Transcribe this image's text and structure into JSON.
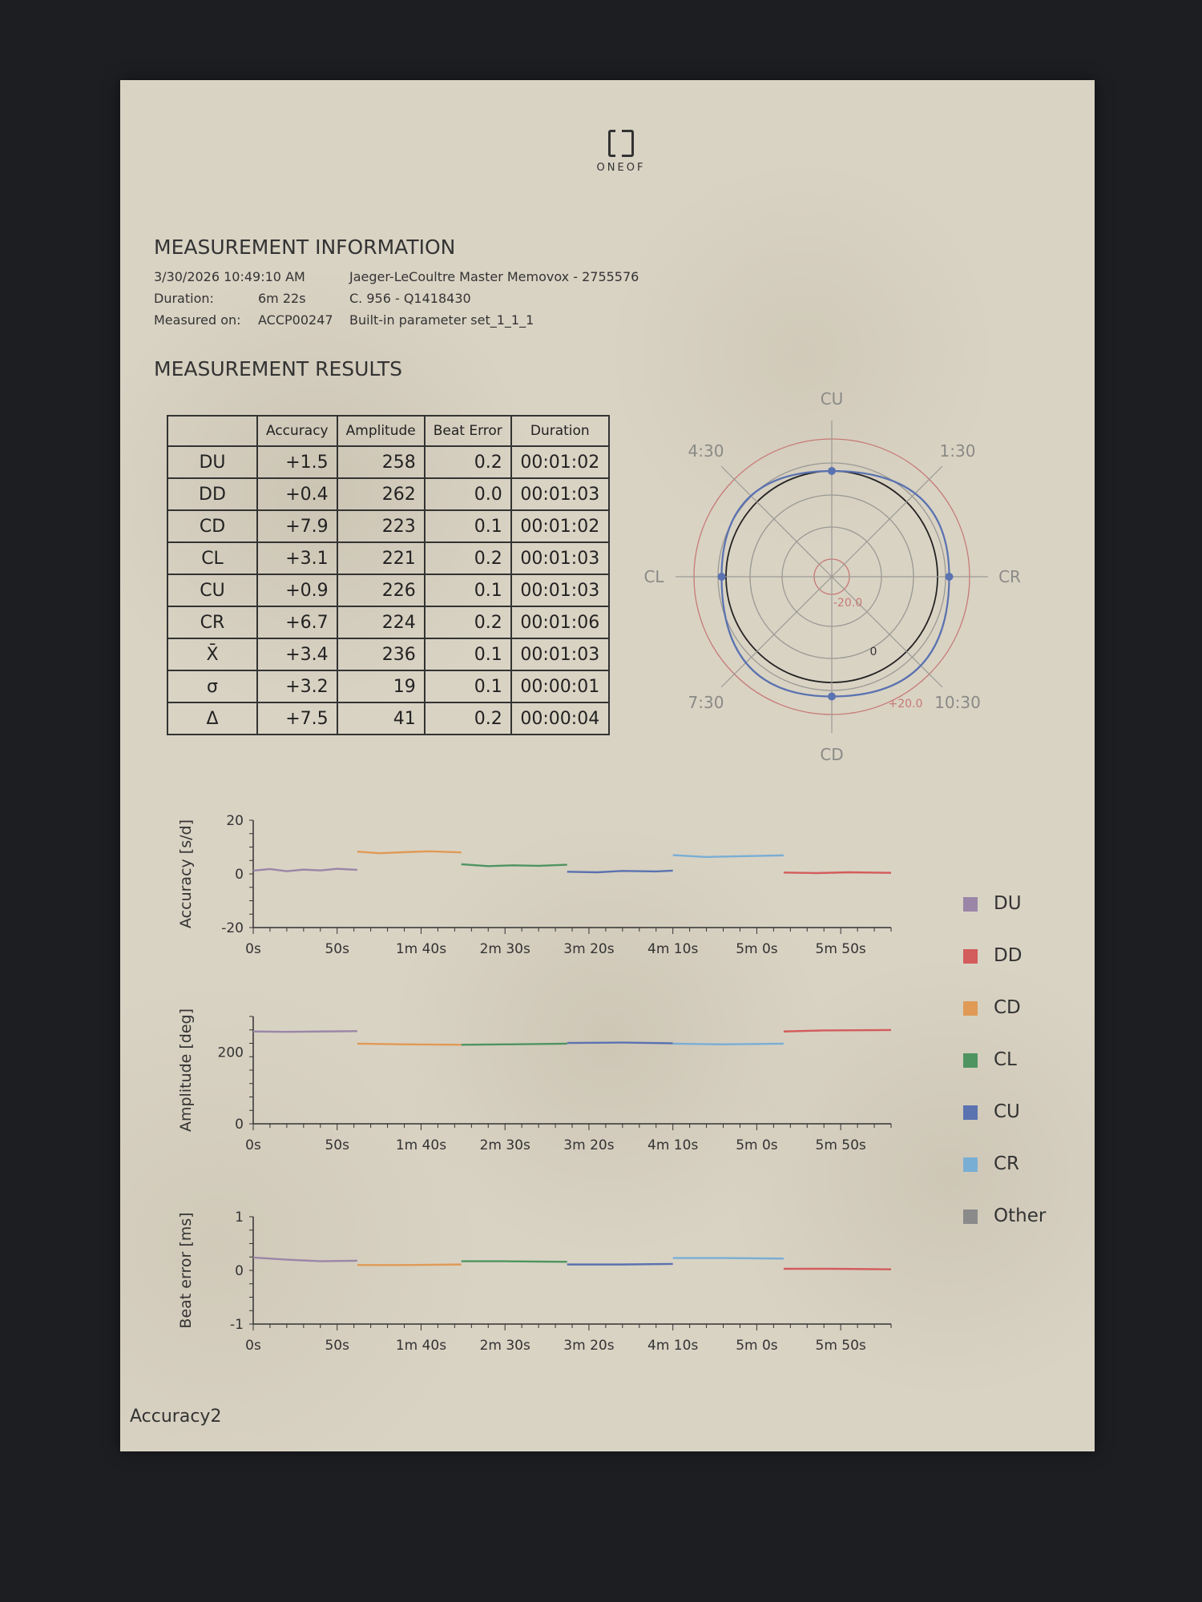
{
  "brand": {
    "logo_text": "ONEOF"
  },
  "measurement_information": {
    "title": "MEASUREMENT INFORMATION",
    "datetime": "3/30/2026 10:49:10 AM",
    "watch": "Jaeger-LeCoultre Master Memovox - 2755576",
    "duration_label": "Duration:",
    "duration_value": "6m 22s",
    "caliber": "C. 956 - Q1418430",
    "measured_on_label": "Measured on:",
    "device": "ACCP00247",
    "parameter_set": "Built-in parameter set_1_1_1"
  },
  "measurement_results": {
    "title": "MEASUREMENT RESULTS",
    "columns": [
      "",
      "Accuracy",
      "Amplitude",
      "Beat Error",
      "Duration"
    ],
    "rows": [
      [
        "DU",
        "+1.5",
        "258",
        "0.2",
        "00:01:02"
      ],
      [
        "DD",
        "+0.4",
        "262",
        "0.0",
        "00:01:03"
      ],
      [
        "CD",
        "+7.9",
        "223",
        "0.1",
        "00:01:02"
      ],
      [
        "CL",
        "+3.1",
        "221",
        "0.2",
        "00:01:03"
      ],
      [
        "CU",
        "+0.9",
        "226",
        "0.1",
        "00:01:03"
      ],
      [
        "CR",
        "+6.7",
        "224",
        "0.2",
        "00:01:06"
      ],
      [
        "X̄",
        "+3.4",
        "236",
        "0.1",
        "00:01:03"
      ],
      [
        "σ",
        "+3.2",
        "19",
        "0.1",
        "00:00:01"
      ],
      [
        "Δ",
        "+7.5",
        "41",
        "0.2",
        "00:00:04"
      ]
    ]
  },
  "legend": [
    {
      "name": "DU",
      "color": "#9b86a8"
    },
    {
      "name": "DD",
      "color": "#d35c5c"
    },
    {
      "name": "CD",
      "color": "#e09a55"
    },
    {
      "name": "CL",
      "color": "#4e9460"
    },
    {
      "name": "CU",
      "color": "#5a72b0"
    },
    {
      "name": "CR",
      "color": "#79aed4"
    },
    {
      "name": "Other",
      "color": "#8a8a8a"
    }
  ],
  "footer": {
    "text": "Accuracy2"
  },
  "chart_data": [
    {
      "type": "polar",
      "axis_labels": [
        "CU",
        "1:30",
        "CR",
        "10:30",
        "CD",
        "7:30",
        "CL",
        "4:30"
      ],
      "ring_labels": [
        "-20.0",
        "0",
        "+20.0"
      ],
      "rlim": [
        -20,
        20
      ],
      "points": [
        {
          "position": "CU",
          "value": 0.9
        },
        {
          "position": "CR",
          "value": 6.7
        },
        {
          "position": "CD",
          "value": 7.9
        },
        {
          "position": "CL",
          "value": 3.1
        }
      ]
    },
    {
      "type": "line",
      "ylabel": "Accuracy [s/d]",
      "ylim": [
        -20,
        20
      ],
      "yticks": [
        "20",
        "0",
        "-20"
      ],
      "xticks": [
        "0s",
        "50s",
        "1m 40s",
        "2m 30s",
        "3m 20s",
        "4m 10s",
        "5m 0s",
        "5m 50s"
      ],
      "series": [
        {
          "name": "DU",
          "x": [
            0,
            10,
            20,
            30,
            40,
            50,
            62
          ],
          "y": [
            1.2,
            1.8,
            1.0,
            1.6,
            1.3,
            1.9,
            1.5
          ]
        },
        {
          "name": "CD",
          "x": [
            62,
            75,
            90,
            105,
            124
          ],
          "y": [
            8.3,
            7.7,
            8.1,
            8.4,
            8.0
          ]
        },
        {
          "name": "CL",
          "x": [
            124,
            140,
            155,
            170,
            187
          ],
          "y": [
            3.6,
            2.9,
            3.2,
            3.0,
            3.4
          ]
        },
        {
          "name": "CU",
          "x": [
            187,
            205,
            220,
            240,
            250
          ],
          "y": [
            0.8,
            0.6,
            1.1,
            0.9,
            1.2
          ]
        },
        {
          "name": "CR",
          "x": [
            250,
            270,
            290,
            316
          ],
          "y": [
            7.0,
            6.3,
            6.6,
            6.9
          ]
        },
        {
          "name": "DD",
          "x": [
            316,
            335,
            355,
            380
          ],
          "y": [
            0.5,
            0.3,
            0.6,
            0.4
          ]
        }
      ]
    },
    {
      "type": "line",
      "ylabel": "Amplitude [deg]",
      "ylim": [
        0,
        300
      ],
      "yticks": [
        "200",
        "0"
      ],
      "xticks": [
        "0s",
        "50s",
        "1m 40s",
        "2m 30s",
        "3m 20s",
        "4m 10s",
        "5m 0s",
        "5m 50s"
      ],
      "series": [
        {
          "name": "DU",
          "x": [
            0,
            20,
            40,
            62
          ],
          "y": [
            258,
            257,
            258,
            259
          ]
        },
        {
          "name": "CD",
          "x": [
            62,
            90,
            124
          ],
          "y": [
            224,
            222,
            221
          ]
        },
        {
          "name": "CL",
          "x": [
            124,
            150,
            187
          ],
          "y": [
            221,
            222,
            224
          ]
        },
        {
          "name": "CU",
          "x": [
            187,
            220,
            250
          ],
          "y": [
            226,
            227,
            225
          ]
        },
        {
          "name": "CR",
          "x": [
            250,
            280,
            316
          ],
          "y": [
            224,
            222,
            224
          ]
        },
        {
          "name": "DD",
          "x": [
            316,
            340,
            380
          ],
          "y": [
            258,
            261,
            262
          ]
        }
      ]
    },
    {
      "type": "line",
      "ylabel": "Beat error [ms]",
      "ylim": [
        -1,
        1
      ],
      "yticks": [
        "1",
        "0",
        "-1"
      ],
      "xticks": [
        "0s",
        "50s",
        "1m 40s",
        "2m 30s",
        "3m 20s",
        "4m 10s",
        "5m 0s",
        "5m 50s"
      ],
      "series": [
        {
          "name": "DU",
          "x": [
            0,
            20,
            40,
            62
          ],
          "y": [
            0.24,
            0.2,
            0.17,
            0.18
          ]
        },
        {
          "name": "CD",
          "x": [
            62,
            90,
            124
          ],
          "y": [
            0.1,
            0.1,
            0.11
          ]
        },
        {
          "name": "CL",
          "x": [
            124,
            150,
            187
          ],
          "y": [
            0.17,
            0.17,
            0.16
          ]
        },
        {
          "name": "CU",
          "x": [
            187,
            220,
            250
          ],
          "y": [
            0.11,
            0.11,
            0.12
          ]
        },
        {
          "name": "CR",
          "x": [
            250,
            280,
            316
          ],
          "y": [
            0.23,
            0.23,
            0.22
          ]
        },
        {
          "name": "DD",
          "x": [
            316,
            345,
            380
          ],
          "y": [
            0.03,
            0.03,
            0.02
          ]
        }
      ]
    }
  ]
}
